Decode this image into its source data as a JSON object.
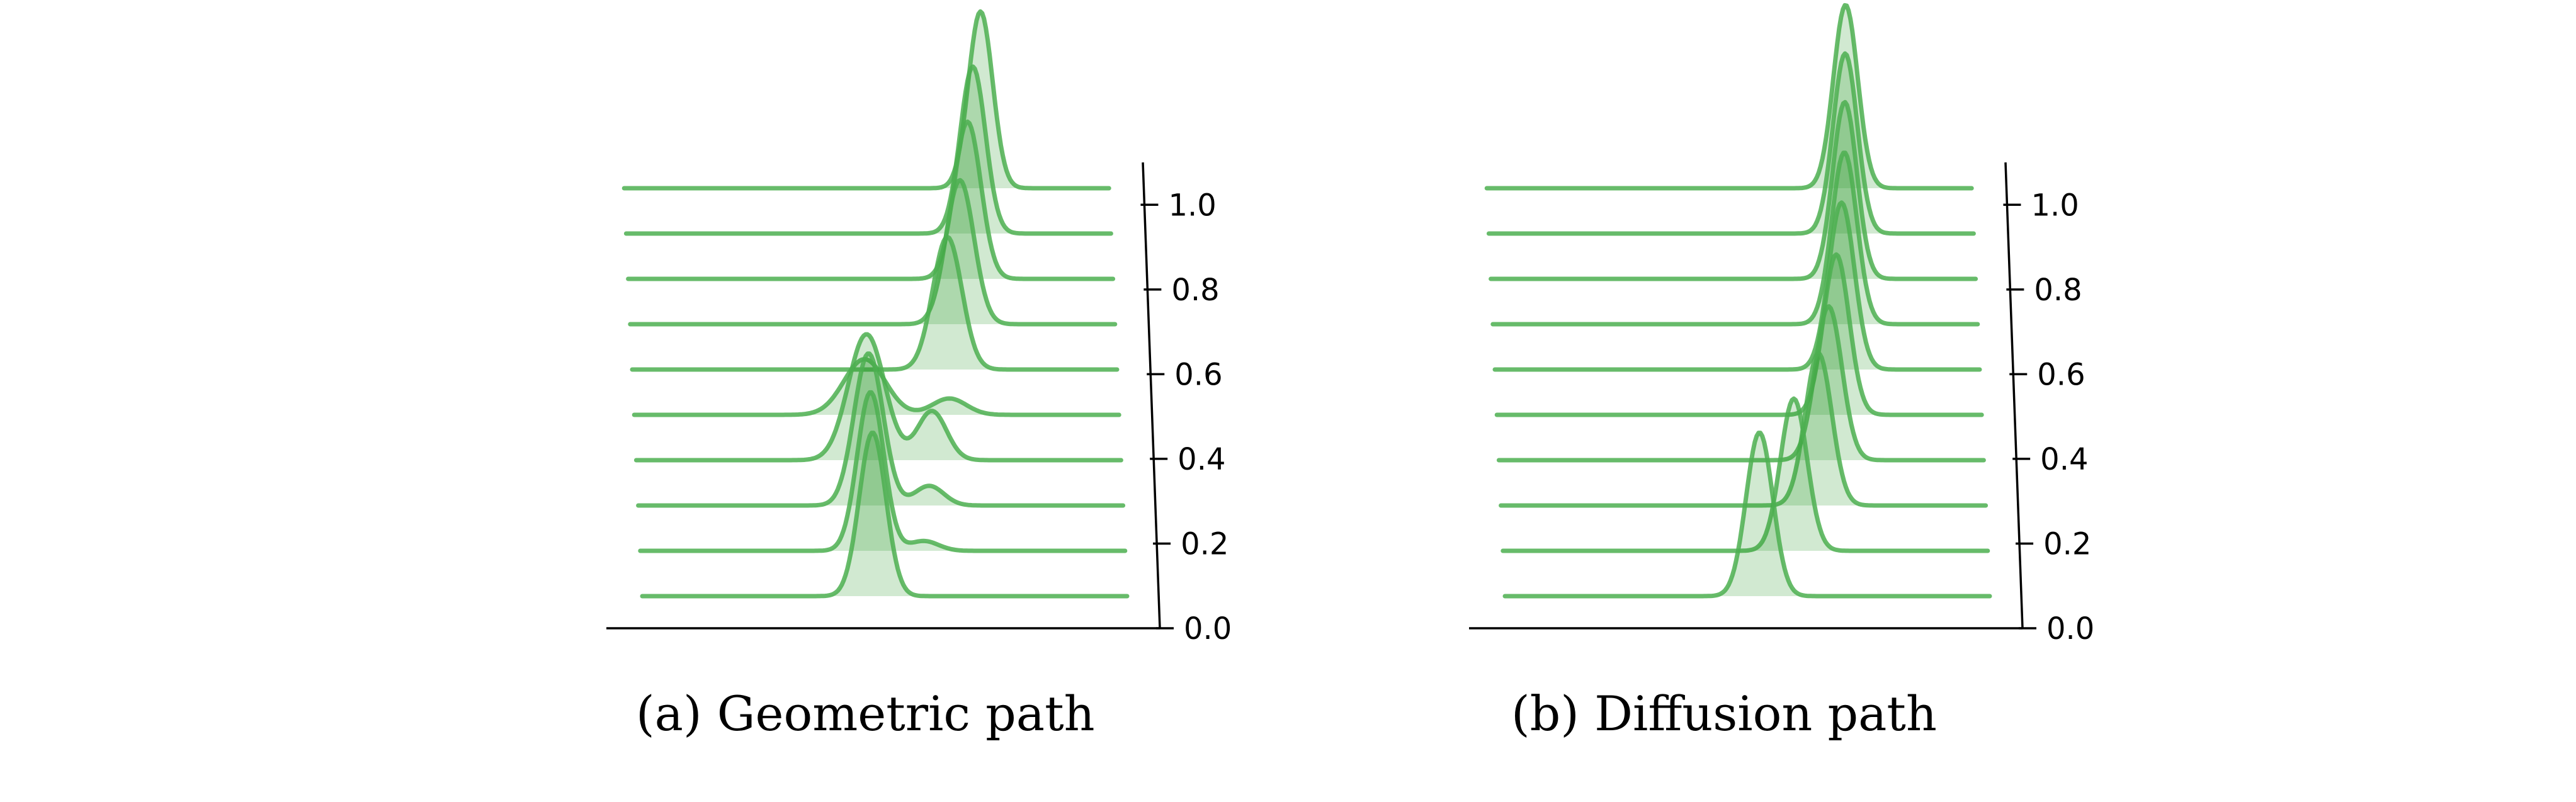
{
  "colors": {
    "line": "#4caf50",
    "fill": "#2e9a2e",
    "axis": "#000000"
  },
  "chart_data": [
    {
      "type": "ridgeline",
      "caption": "(a) Geometric path",
      "z_ticks": [
        "0.0",
        "0.2",
        "0.4",
        "0.6",
        "0.8",
        "1.0"
      ],
      "zlim": [
        0.0,
        1.1
      ],
      "xlim": [
        -1,
        1
      ],
      "ridges": [
        {
          "t": 0.0,
          "components": [
            {
              "mu": -0.05,
              "sigma": 0.055,
              "w": 1.0
            }
          ]
        },
        {
          "t": 0.1,
          "components": [
            {
              "mu": -0.05,
              "sigma": 0.055,
              "w": 0.97
            },
            {
              "mu": 0.17,
              "sigma": 0.06,
              "w": 0.06
            }
          ]
        },
        {
          "t": 0.2,
          "components": [
            {
              "mu": -0.05,
              "sigma": 0.06,
              "w": 0.93
            },
            {
              "mu": 0.2,
              "sigma": 0.06,
              "w": 0.12
            }
          ]
        },
        {
          "t": 0.3,
          "components": [
            {
              "mu": -0.05,
              "sigma": 0.075,
              "w": 0.77
            },
            {
              "mu": 0.22,
              "sigma": 0.06,
              "w": 0.3
            }
          ]
        },
        {
          "t": 0.4,
          "components": [
            {
              "mu": -0.05,
              "sigma": 0.085,
              "w": 0.34
            },
            {
              "mu": 0.3,
              "sigma": 0.07,
              "w": 0.1
            }
          ]
        },
        {
          "t": 0.5,
          "components": [
            {
              "mu": 0.3,
              "sigma": 0.06,
              "w": 0.81
            }
          ]
        },
        {
          "t": 0.6,
          "components": [
            {
              "mu": 0.36,
              "sigma": 0.058,
              "w": 0.88
            }
          ]
        },
        {
          "t": 0.7,
          "components": [
            {
              "mu": 0.4,
              "sigma": 0.055,
              "w": 0.96
            }
          ]
        },
        {
          "t": 0.8,
          "components": [
            {
              "mu": 0.43,
              "sigma": 0.052,
              "w": 1.02
            }
          ]
        },
        {
          "t": 0.9,
          "components": [
            {
              "mu": 0.47,
              "sigma": 0.05,
              "w": 1.08
            }
          ]
        }
      ]
    },
    {
      "type": "ridgeline",
      "caption": "(b) Diffusion path",
      "z_ticks": [
        "0.0",
        "0.2",
        "0.4",
        "0.6",
        "0.8",
        "1.0"
      ],
      "zlim": [
        0.0,
        1.1
      ],
      "xlim": [
        -1,
        1
      ],
      "ridges": [
        {
          "t": 0.0,
          "components": [
            {
              "mu": 0.05,
              "sigma": 0.055,
              "w": 1.0
            }
          ]
        },
        {
          "t": 0.1,
          "components": [
            {
              "mu": 0.2,
              "sigma": 0.055,
              "w": 0.93
            }
          ]
        },
        {
          "t": 0.2,
          "components": [
            {
              "mu": 0.31,
              "sigma": 0.055,
              "w": 0.93
            }
          ]
        },
        {
          "t": 0.3,
          "components": [
            {
              "mu": 0.36,
              "sigma": 0.055,
              "w": 0.94
            }
          ]
        },
        {
          "t": 0.4,
          "components": [
            {
              "mu": 0.4,
              "sigma": 0.053,
              "w": 0.98
            }
          ]
        },
        {
          "t": 0.5,
          "components": [
            {
              "mu": 0.43,
              "sigma": 0.053,
              "w": 1.02
            }
          ]
        },
        {
          "t": 0.6,
          "components": [
            {
              "mu": 0.45,
              "sigma": 0.052,
              "w": 1.05
            }
          ]
        },
        {
          "t": 0.7,
          "components": [
            {
              "mu": 0.46,
              "sigma": 0.05,
              "w": 1.08
            }
          ]
        },
        {
          "t": 0.8,
          "components": [
            {
              "mu": 0.47,
              "sigma": 0.05,
              "w": 1.1
            }
          ]
        },
        {
          "t": 0.9,
          "components": [
            {
              "mu": 0.48,
              "sigma": 0.05,
              "w": 1.12
            }
          ]
        }
      ]
    }
  ]
}
